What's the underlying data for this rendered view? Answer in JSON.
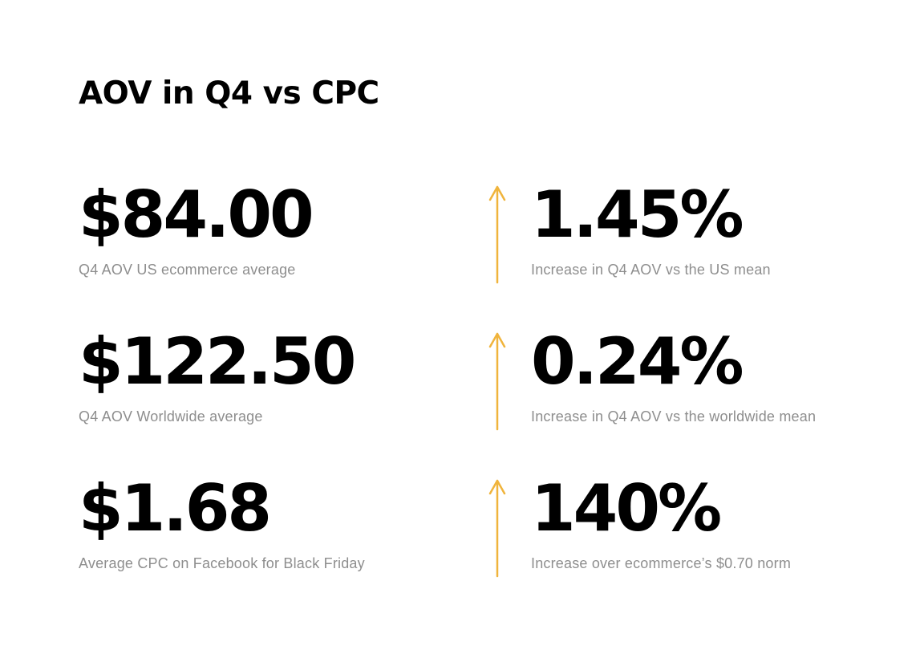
{
  "title": "AOV in Q4 vs CPC",
  "accent_color": "#f0b43c",
  "rows": [
    {
      "left": {
        "value": "$84.00",
        "caption": "Q4 AOV US ecommerce average"
      },
      "right": {
        "value": "1.45%",
        "caption": "Increase in Q4 AOV vs the US mean"
      },
      "arrow_icon": "arrow-up-icon"
    },
    {
      "left": {
        "value": "$122.50",
        "caption": "Q4 AOV Worldwide average"
      },
      "right": {
        "value": "0.24%",
        "caption": "Increase in Q4 AOV vs the worldwide mean"
      },
      "arrow_icon": "arrow-up-icon"
    },
    {
      "left": {
        "value": "$1.68",
        "caption": "Average CPC on Facebook for Black Friday"
      },
      "right": {
        "value": "140%",
        "caption": "Increase over ecommerce’s $0.70 norm"
      },
      "arrow_icon": "arrow-up-icon"
    }
  ]
}
